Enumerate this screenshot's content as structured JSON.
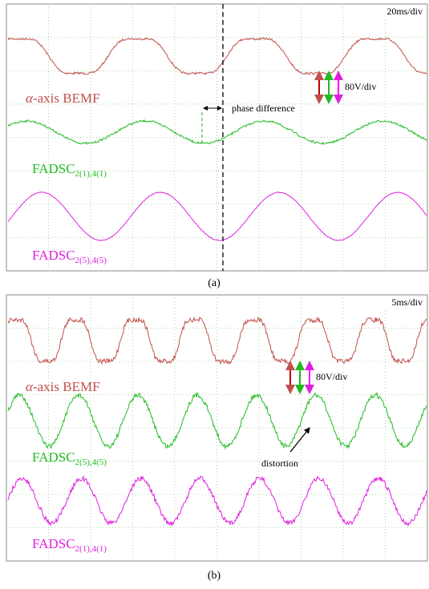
{
  "panels": [
    {
      "time_div": "20ms/div",
      "volt_div": "80V/div",
      "caption": "(a)",
      "traces": [
        {
          "label": "-axis BEMF",
          "symbol": "α",
          "color": "#c0504d"
        },
        {
          "label": "FADSC",
          "sub": "2(1),4(1)",
          "color": "#22bb22"
        },
        {
          "label": "FADSC",
          "sub": "2(5),4(5)",
          "color": "#e020e0"
        }
      ],
      "annotation": "phase difference"
    },
    {
      "time_div": "5ms/div",
      "volt_div": "80V/div",
      "caption": "(b)",
      "traces": [
        {
          "label": "-axis BEMF",
          "symbol": "α",
          "color": "#c0504d"
        },
        {
          "label": "FADSC",
          "sub": "2(5),4(5)",
          "color": "#22bb22"
        },
        {
          "label": "FADSC",
          "sub": "2(1),4(1)",
          "color": "#e020e0"
        }
      ],
      "annotation": "distortion"
    }
  ]
}
